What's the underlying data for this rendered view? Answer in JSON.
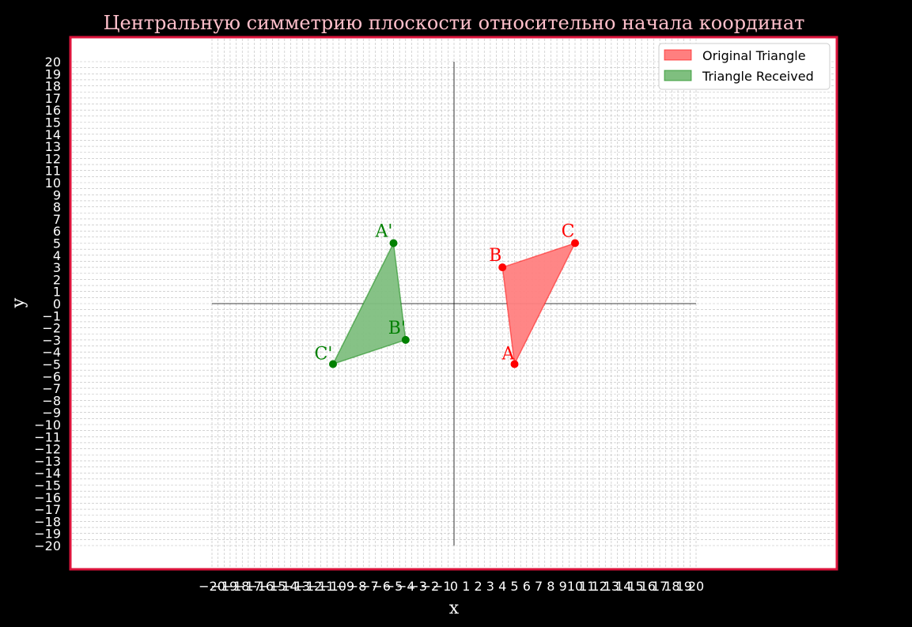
{
  "chart_data": {
    "type": "polygon",
    "title": "Центральную симметрию плоскости относительно начала координат",
    "xlabel": "x",
    "ylabel": "y",
    "xlim": [
      -20,
      20
    ],
    "ylim": [
      -20,
      20
    ],
    "ticks": [
      -20,
      -19,
      -18,
      -17,
      -16,
      -15,
      -14,
      -13,
      -12,
      -11,
      -10,
      -9,
      -8,
      -7,
      -6,
      -5,
      -4,
      -3,
      -2,
      -1,
      0,
      1,
      2,
      3,
      4,
      5,
      6,
      7,
      8,
      9,
      10,
      11,
      12,
      13,
      14,
      15,
      16,
      17,
      18,
      19,
      20
    ],
    "grid": true,
    "legend_position": "top-right",
    "series": [
      {
        "name": "Original Triangle",
        "color": "#ff0000",
        "fill": "#ff7f7f",
        "points": [
          {
            "label": "A",
            "x": 5,
            "y": -5
          },
          {
            "label": "B",
            "x": 4,
            "y": 3
          },
          {
            "label": "C",
            "x": 10,
            "y": 5
          }
        ]
      },
      {
        "name": "Triangle Received",
        "color": "#008000",
        "fill": "#7fbf7f",
        "points": [
          {
            "label": "A'",
            "x": -5,
            "y": 5
          },
          {
            "label": "B'",
            "x": -4,
            "y": -3
          },
          {
            "label": "C'",
            "x": -10,
            "y": -5
          }
        ]
      }
    ]
  },
  "colors": {
    "frame": "#dc143c",
    "background": "#000000",
    "plot_background": "#ffffff"
  }
}
